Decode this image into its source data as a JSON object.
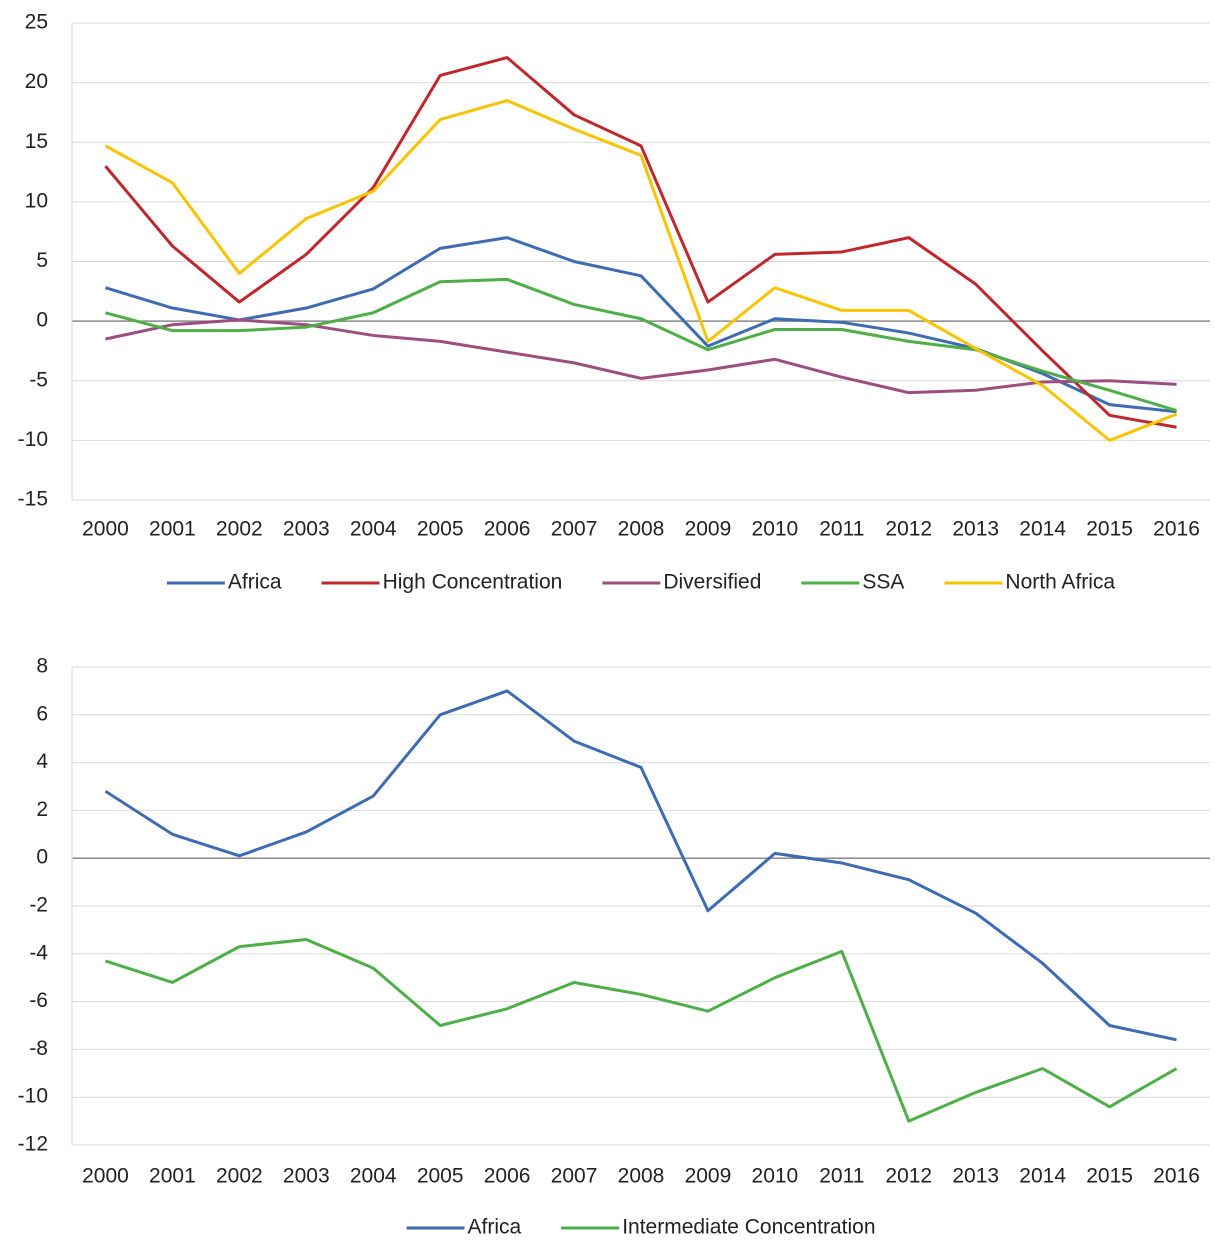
{
  "chart_data": [
    {
      "type": "line",
      "categories": [
        "2000",
        "2001",
        "2002",
        "2003",
        "2004",
        "2005",
        "2006",
        "2007",
        "2008",
        "2009",
        "2010",
        "2011",
        "2012",
        "2013",
        "2014",
        "2015",
        "2016"
      ],
      "series": [
        {
          "name": "Africa",
          "color": "#3e6bb2",
          "values": [
            2.8,
            1.1,
            0.1,
            1.1,
            2.7,
            6.1,
            7.0,
            5.0,
            3.8,
            -2.1,
            0.2,
            -0.1,
            -1.0,
            -2.3,
            -4.4,
            -7.0,
            -7.6
          ]
        },
        {
          "name": "High Concentration",
          "color": "#c0272d",
          "values": [
            13.0,
            6.3,
            1.6,
            5.6,
            11.2,
            20.6,
            22.1,
            17.3,
            14.7,
            1.6,
            5.6,
            5.8,
            7.0,
            3.1,
            -2.5,
            -7.9,
            -8.9
          ]
        },
        {
          "name": "Diversified",
          "color": "#9c4f7f",
          "values": [
            -1.5,
            -0.3,
            0.1,
            -0.3,
            -1.2,
            -1.7,
            -2.6,
            -3.5,
            -4.8,
            -4.1,
            -3.2,
            -4.7,
            -6.0,
            -5.8,
            -5.1,
            -5.0,
            -5.3
          ]
        },
        {
          "name": "SSA",
          "color": "#4eae48",
          "values": [
            0.7,
            -0.8,
            -0.8,
            -0.5,
            0.7,
            3.3,
            3.5,
            1.4,
            0.2,
            -2.4,
            -0.7,
            -0.7,
            -1.7,
            -2.4,
            -4.2,
            -5.8,
            -7.5
          ]
        },
        {
          "name": "North Africa",
          "color": "#f9c300",
          "values": [
            14.7,
            11.6,
            4.0,
            8.6,
            10.9,
            16.9,
            18.5,
            16.1,
            13.9,
            -1.7,
            2.8,
            0.9,
            0.9,
            -2.3,
            -5.4,
            -10.0,
            -7.8
          ]
        }
      ],
      "ylim": [
        -15,
        25
      ],
      "yticks": [
        -15,
        -10,
        -5,
        0,
        5,
        10,
        15,
        20,
        25
      ],
      "grid": true,
      "legend": "bottom"
    },
    {
      "type": "line",
      "categories": [
        "2000",
        "2001",
        "2002",
        "2003",
        "2004",
        "2005",
        "2006",
        "2007",
        "2008",
        "2009",
        "2010",
        "2011",
        "2012",
        "2013",
        "2014",
        "2015",
        "2016"
      ],
      "series": [
        {
          "name": "Africa",
          "color": "#3e6bb2",
          "values": [
            2.8,
            1.0,
            0.1,
            1.1,
            2.6,
            6.0,
            7.0,
            4.9,
            3.8,
            -2.2,
            0.2,
            -0.2,
            -0.9,
            -2.3,
            -4.4,
            -7.0,
            -7.6
          ]
        },
        {
          "name": "Intermediate Concentration",
          "color": "#4eae48",
          "values": [
            -4.3,
            -5.2,
            -3.7,
            -3.4,
            -4.6,
            -7.0,
            -6.3,
            -5.2,
            -5.7,
            -6.4,
            -5.0,
            -3.9,
            -11.0,
            -9.8,
            -8.8,
            -10.4,
            -8.8
          ]
        }
      ],
      "ylim": [
        -12,
        8
      ],
      "yticks": [
        -12,
        -10,
        -8,
        -6,
        -4,
        -2,
        0,
        2,
        4,
        6,
        8
      ],
      "grid": true,
      "legend": "bottom"
    }
  ]
}
